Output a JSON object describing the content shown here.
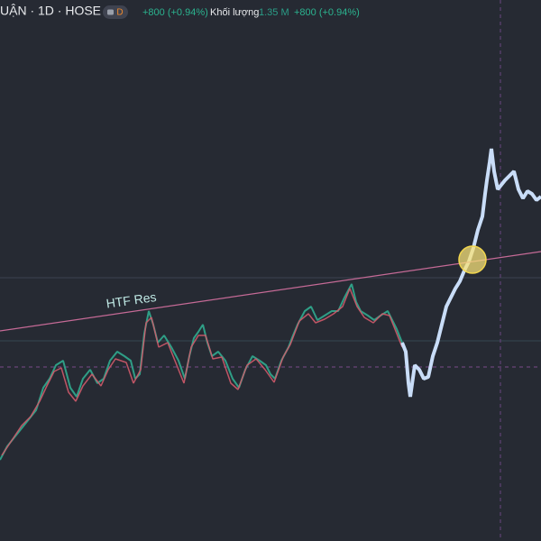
{
  "header": {
    "title": "UẬN · 1D · HOSE",
    "badge": "D",
    "change": "+800 (+0.94%)",
    "volume_label": "Khối lượng",
    "volume": "1.35 M",
    "volume_change": "+800 (+0.94%)"
  },
  "annotations": {
    "trendline_label": "HTF Res"
  }
}
